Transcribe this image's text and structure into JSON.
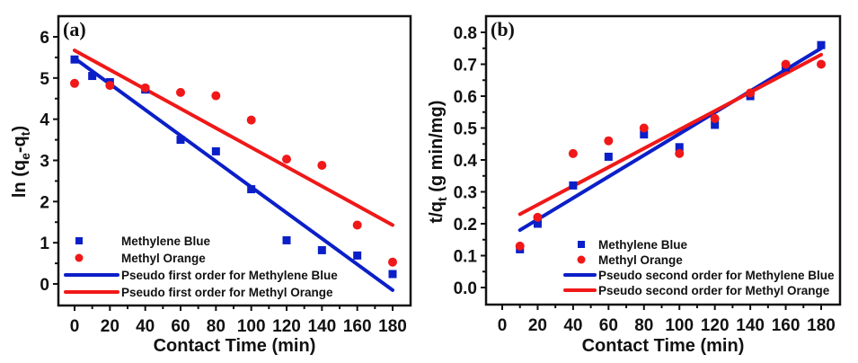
{
  "chart_data": [
    {
      "type": "scatter",
      "panel_label": "(a)",
      "xlabel": "Contact Time (min)",
      "ylabel_main": "ln (q",
      "ylabel_sub1": "e",
      "ylabel_mid": "-q",
      "ylabel_sub2": "t",
      "ylabel_end": ")",
      "xlim": [
        -10,
        190
      ],
      "ylim": [
        -0.5,
        6.5
      ],
      "xticks": [
        0,
        20,
        40,
        60,
        80,
        100,
        120,
        140,
        160,
        180
      ],
      "yticks": [
        0,
        1,
        2,
        3,
        4,
        5,
        6
      ],
      "legend_position": "bottom-left",
      "series": [
        {
          "name": "Methylene Blue",
          "kind": "points",
          "marker": "square",
          "color": "#0b1fc8",
          "x": [
            0,
            10,
            20,
            40,
            60,
            80,
            100,
            120,
            140,
            160,
            180
          ],
          "y": [
            5.45,
            5.05,
            4.9,
            4.72,
            3.5,
            3.22,
            2.3,
            1.06,
            0.82,
            0.69,
            0.24
          ]
        },
        {
          "name": "Methyl Orange",
          "kind": "points",
          "marker": "circle",
          "color": "#f01818",
          "x": [
            0,
            20,
            40,
            60,
            80,
            100,
            120,
            140,
            160,
            180
          ],
          "y": [
            4.87,
            4.82,
            4.76,
            4.65,
            4.57,
            3.98,
            3.03,
            2.88,
            1.43,
            0.53
          ]
        },
        {
          "name": "Pseudo first order for Methylene Blue",
          "kind": "line",
          "color": "#0b1fc8",
          "x": [
            0,
            180
          ],
          "y": [
            5.48,
            -0.15
          ]
        },
        {
          "name": "Pseudo first order for Methyl Orange",
          "kind": "line",
          "color": "#f01818",
          "x": [
            0,
            180
          ],
          "y": [
            5.67,
            1.43
          ]
        }
      ]
    },
    {
      "type": "scatter",
      "panel_label": "(b)",
      "xlabel": "Contact Time (min)",
      "ylabel_main": "t/q",
      "ylabel_sub1": "t",
      "ylabel_mid": " (g min/mg)",
      "ylabel_sub2": "",
      "ylabel_end": "",
      "xlim": [
        -10,
        190
      ],
      "ylim": [
        -0.05,
        0.85
      ],
      "xticks": [
        0,
        20,
        40,
        60,
        80,
        100,
        120,
        140,
        160,
        180
      ],
      "yticks": [
        "0.0",
        "0.1",
        "0.2",
        "0.3",
        "0.4",
        "0.5",
        "0.6",
        "0.7",
        "0.8"
      ],
      "legend_position": "bottom-right",
      "series": [
        {
          "name": "Methylene Blue",
          "kind": "points",
          "marker": "square",
          "color": "#0b1fc8",
          "x": [
            10,
            20,
            40,
            60,
            80,
            100,
            120,
            140,
            160,
            180
          ],
          "y": [
            0.12,
            0.2,
            0.32,
            0.41,
            0.48,
            0.44,
            0.51,
            0.6,
            0.69,
            0.76
          ]
        },
        {
          "name": "Methyl Orange",
          "kind": "points",
          "marker": "circle",
          "color": "#f01818",
          "x": [
            10,
            20,
            40,
            60,
            80,
            100,
            120,
            140,
            160,
            180
          ],
          "y": [
            0.13,
            0.22,
            0.42,
            0.46,
            0.5,
            0.42,
            0.53,
            0.61,
            0.7,
            0.7
          ]
        },
        {
          "name": "Pseudo second order for Methylene Blue",
          "kind": "line",
          "color": "#0b1fc8",
          "x": [
            10,
            180
          ],
          "y": [
            0.18,
            0.75
          ]
        },
        {
          "name": "Pseudo second order for Methyl Orange",
          "kind": "line",
          "color": "#f01818",
          "x": [
            10,
            180
          ],
          "y": [
            0.23,
            0.73
          ]
        }
      ]
    }
  ]
}
